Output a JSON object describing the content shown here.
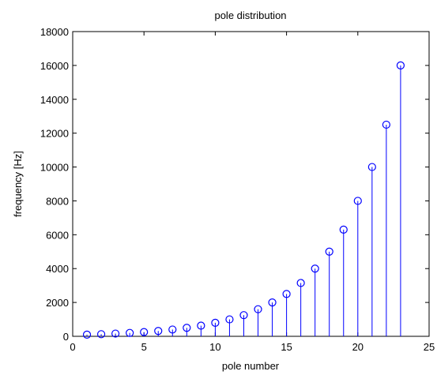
{
  "chart_data": {
    "type": "stem",
    "title": "pole distribution",
    "xlabel": "pole number",
    "ylabel": "frequency [Hz]",
    "xlim": [
      0,
      25
    ],
    "ylim": [
      0,
      18000
    ],
    "xticks": [
      0,
      5,
      10,
      15,
      20,
      25
    ],
    "yticks": [
      0,
      2000,
      4000,
      6000,
      8000,
      10000,
      12000,
      14000,
      16000,
      18000
    ],
    "grid": false,
    "marker": "circle",
    "color": "#0000ff",
    "x": [
      1,
      2,
      3,
      4,
      5,
      6,
      7,
      8,
      9,
      10,
      11,
      12,
      13,
      14,
      15,
      16,
      17,
      18,
      19,
      20,
      21,
      22,
      23
    ],
    "values": [
      100,
      125,
      160,
      200,
      250,
      315,
      400,
      500,
      630,
      800,
      1000,
      1250,
      1600,
      2000,
      2500,
      3150,
      4000,
      5000,
      6300,
      8000,
      10000,
      12500,
      16000
    ]
  }
}
